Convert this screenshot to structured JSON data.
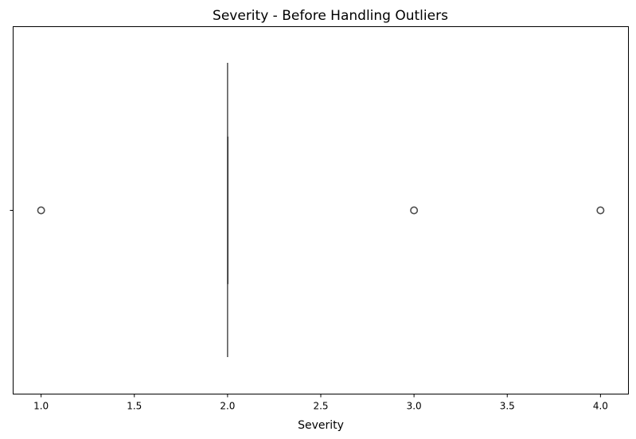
{
  "chart_data": {
    "type": "boxplot",
    "title": "Severity - Before Handling Outliers",
    "xlabel": "Severity",
    "ylabel": "",
    "xlim": [
      0.85,
      4.15
    ],
    "xticks": [
      1.0,
      1.5,
      2.0,
      2.5,
      3.0,
      3.5,
      4.0
    ],
    "xtick_labels": [
      "1.0",
      "1.5",
      "2.0",
      "2.5",
      "3.0",
      "3.5",
      "4.0"
    ],
    "orientation": "horizontal",
    "grid": false,
    "box": {
      "min": 2.0,
      "q1": 2.0,
      "median": 2.0,
      "q3": 2.0,
      "max": 2.0
    },
    "outliers": [
      1.0,
      3.0,
      4.0
    ]
  },
  "colors": {
    "box_line": "#4d4d4d",
    "axis": "#000000",
    "background": "#ffffff"
  }
}
